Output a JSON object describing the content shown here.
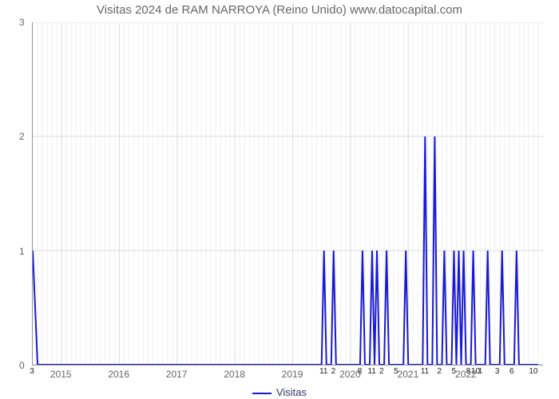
{
  "visits_chart": {
    "type": "line",
    "title": "Visitas 2024 de RAM NARROYA (Reino Unido) www.datocapital.com",
    "title_fontsize": 15,
    "title_color": "#666666",
    "xlabel_years": [
      "2015",
      "2016",
      "2017",
      "2018",
      "2019",
      "2020",
      "2021",
      "2022"
    ],
    "xlabel_fontsize": 12,
    "xlabel_color": "#666666",
    "ylim": [
      0,
      3
    ],
    "yticks": [
      0,
      1,
      2,
      3
    ],
    "minor_per_year": 12,
    "grid_major_color": "#dddddd",
    "grid_minor_color": "#f0f0f0",
    "line_color": "#1818d6",
    "line_width": 2,
    "background_color": "#ffffff",
    "legend_label": "Visitas",
    "legend_color": "#333366",
    "x_points": [
      0,
      1,
      2,
      3,
      4,
      5,
      6,
      7,
      8,
      9,
      10,
      11,
      12,
      13,
      14,
      15,
      16,
      17,
      18,
      19,
      20,
      21,
      22,
      23,
      24,
      25,
      26,
      27,
      28,
      29,
      30,
      31,
      32,
      33,
      34,
      35,
      36,
      37,
      38,
      39,
      40,
      41,
      42,
      43,
      44,
      45,
      46,
      47,
      48,
      49,
      50,
      51,
      52,
      53,
      54,
      55,
      56,
      57,
      58,
      59,
      60,
      60.5,
      61,
      62,
      62.5,
      63,
      64,
      65,
      66,
      67,
      68,
      68.5,
      69,
      70,
      70.5,
      71,
      71.5,
      72,
      73,
      73.5,
      74,
      75,
      76,
      77,
      77.5,
      78,
      79,
      80,
      81,
      81.5,
      82,
      83,
      83.5,
      84,
      85,
      85.5,
      86,
      87,
      87.5,
      88,
      88.5,
      89,
      89.5,
      90,
      91,
      91.5,
      92,
      93,
      94,
      94.5,
      95,
      96,
      97,
      97.5,
      98,
      99,
      100,
      100.5,
      101,
      102,
      103,
      104,
      105
    ],
    "y_points": [
      1,
      0,
      0,
      0,
      0,
      0,
      0,
      0,
      0,
      0,
      0,
      0,
      0,
      0,
      0,
      0,
      0,
      0,
      0,
      0,
      0,
      0,
      0,
      0,
      0,
      0,
      0,
      0,
      0,
      0,
      0,
      0,
      0,
      0,
      0,
      0,
      0,
      0,
      0,
      0,
      0,
      0,
      0,
      0,
      0,
      0,
      0,
      0,
      0,
      0,
      0,
      0,
      0,
      0,
      0,
      0,
      0,
      0,
      0,
      0,
      0,
      1,
      0,
      0,
      1,
      0,
      0,
      0,
      0,
      0,
      0,
      1,
      0,
      0,
      1,
      0,
      1,
      0,
      0,
      1,
      0,
      0,
      0,
      0,
      1,
      0,
      0,
      0,
      0,
      2,
      0,
      0,
      2,
      0,
      0,
      1,
      0,
      0,
      1,
      0,
      1,
      0,
      1,
      0,
      0,
      1,
      0,
      0,
      0,
      1,
      0,
      0,
      0,
      1,
      0,
      0,
      0,
      1,
      0,
      0,
      0,
      0,
      0
    ],
    "x_domain": [
      0,
      106
    ],
    "secondary_x_labels": [
      {
        "x": 0,
        "text": "3"
      },
      {
        "x": 60.5,
        "text": "11"
      },
      {
        "x": 62.5,
        "text": "2"
      },
      {
        "x": 68,
        "text": "8"
      },
      {
        "x": 70.5,
        "text": "11"
      },
      {
        "x": 72.5,
        "text": "2"
      },
      {
        "x": 75.5,
        "text": "5"
      },
      {
        "x": 81.5,
        "text": "11"
      },
      {
        "x": 84.5,
        "text": "2"
      },
      {
        "x": 87.5,
        "text": "5"
      },
      {
        "x": 90.5,
        "text": "8"
      },
      {
        "x": 92,
        "text": "10"
      },
      {
        "x": 93,
        "text": "1"
      },
      {
        "x": 96.5,
        "text": "3"
      },
      {
        "x": 99.5,
        "text": "6"
      },
      {
        "x": 104,
        "text": "10"
      }
    ]
  }
}
